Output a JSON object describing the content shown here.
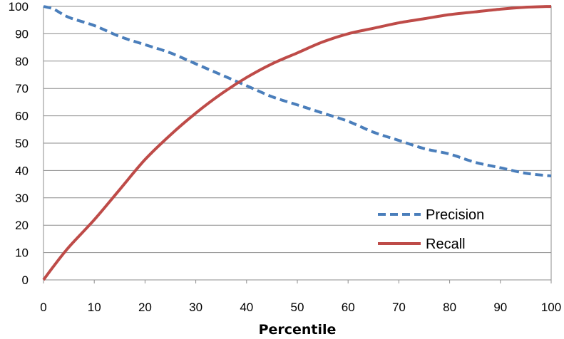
{
  "chart_data": {
    "type": "line",
    "title": "",
    "xlabel": "Percentile",
    "ylabel": "",
    "xlim": [
      0,
      100
    ],
    "ylim": [
      0,
      100
    ],
    "x_ticks": [
      0,
      10,
      20,
      30,
      40,
      50,
      60,
      70,
      80,
      90,
      100
    ],
    "y_ticks": [
      0,
      10,
      20,
      30,
      40,
      50,
      60,
      70,
      80,
      90,
      100
    ],
    "grid": "horizontal",
    "legend_position": "bottom-right",
    "series": [
      {
        "name": "Precision",
        "color": "#4a7ebb",
        "style": "dashed",
        "x": [
          0,
          2,
          5,
          10,
          15,
          20,
          25,
          30,
          35,
          40,
          45,
          50,
          55,
          60,
          65,
          70,
          75,
          80,
          85,
          90,
          95,
          100
        ],
        "y": [
          100,
          99,
          96,
          93,
          89,
          86,
          83,
          79,
          75,
          71,
          67,
          64,
          61,
          58,
          54,
          51,
          48,
          46,
          43,
          41,
          39,
          38
        ]
      },
      {
        "name": "Recall",
        "color": "#be4b48",
        "style": "solid",
        "x": [
          0,
          2,
          5,
          10,
          15,
          20,
          25,
          30,
          35,
          40,
          45,
          50,
          55,
          60,
          65,
          70,
          75,
          80,
          85,
          90,
          95,
          100
        ],
        "y": [
          0,
          5,
          12,
          22,
          33,
          44,
          53,
          61,
          68,
          74,
          79,
          83,
          87,
          90,
          92,
          94,
          95.5,
          97,
          98,
          99,
          99.7,
          100
        ]
      }
    ]
  }
}
